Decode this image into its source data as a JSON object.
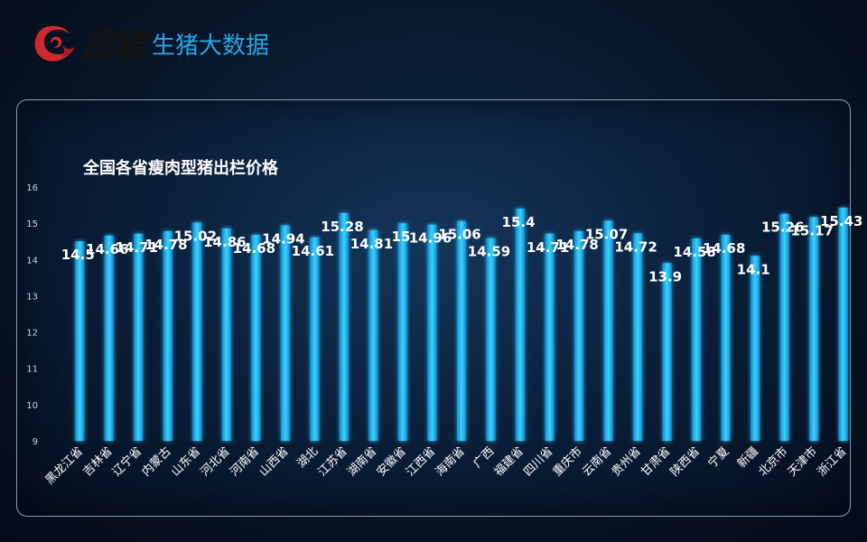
{
  "brand": {
    "logo_text": "搜猪",
    "subtitle": "生猪大数据",
    "colors": {
      "logo_red": "#d0282e",
      "subtitle_blue": "#2aa6e6"
    }
  },
  "colors": {
    "bar": "#1fb4f0",
    "bar_glow": "#26c6ff",
    "label": "#ffffff",
    "tick": "#c8d4e4"
  },
  "chart_data": {
    "type": "bar",
    "title": "全国各省瘦肉型猪出栏价格",
    "xlabel": "",
    "ylabel": "",
    "ylim": [
      9,
      16
    ],
    "yticks": [
      9,
      10,
      11,
      12,
      13,
      14,
      15,
      16
    ],
    "categories": [
      "黑龙江省",
      "吉林省",
      "辽宁省",
      "内蒙古",
      "山东省",
      "河北省",
      "河南省",
      "山西省",
      "湖北",
      "江苏省",
      "湖南省",
      "安徽省",
      "江西省",
      "海南省",
      "广西",
      "福建省",
      "四川省",
      "重庆市",
      "云南省",
      "贵州省",
      "甘肃省",
      "陕西省",
      "宁夏",
      "新疆",
      "北京市",
      "天津市",
      "浙江省"
    ],
    "values": [
      14.5,
      14.66,
      14.71,
      14.78,
      15.02,
      14.86,
      14.68,
      14.94,
      14.61,
      15.28,
      14.81,
      15,
      14.96,
      15.06,
      14.59,
      15.4,
      14.71,
      14.78,
      15.07,
      14.72,
      13.9,
      14.58,
      14.68,
      14.1,
      15.26,
      15.17,
      15.43
    ]
  }
}
